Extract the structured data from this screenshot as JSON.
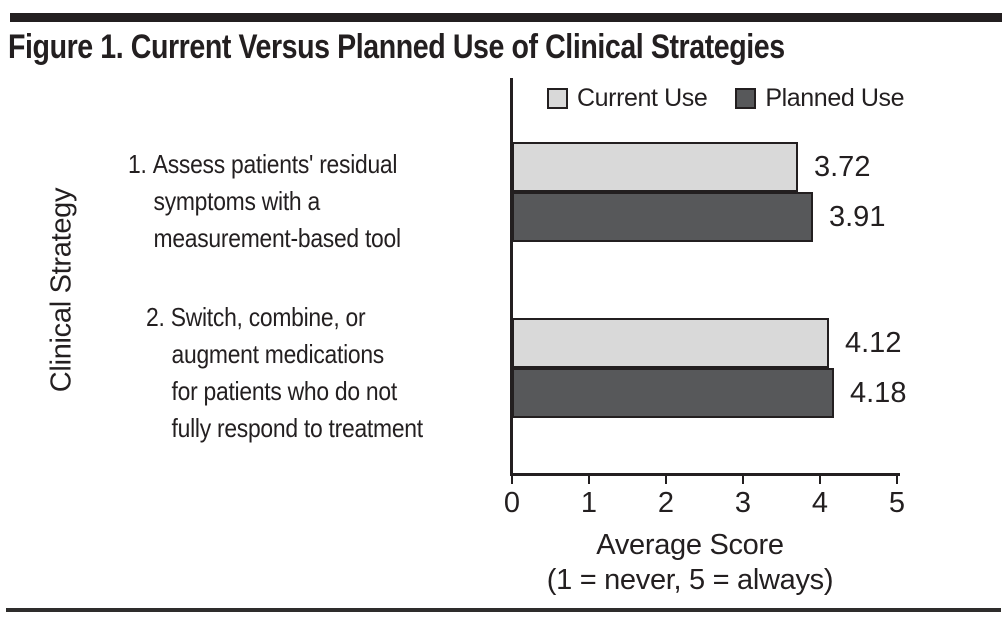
{
  "title": "Figure 1. Current Versus Planned Use of Clinical Strategies",
  "colors": {
    "ink": "#231f20",
    "current_fill": "#d9d9d9",
    "planned_fill": "#57585a",
    "background": "#ffffff"
  },
  "legend": [
    {
      "label": "Current Use",
      "swatch_color": "#d9d9d9"
    },
    {
      "label": "Planned Use",
      "swatch_color": "#57585a"
    }
  ],
  "chart_data": {
    "type": "bar",
    "orientation": "horizontal",
    "title": "Figure 1. Current Versus Planned Use of Clinical Strategies",
    "categories": [
      {
        "number": "1.",
        "lines": [
          "Assess patients' residual",
          "symptoms with a",
          "measurement-based tool"
        ]
      },
      {
        "number": "2.",
        "lines": [
          "Switch, combine, or",
          "augment medications",
          "for patients who do not",
          "fully respond to treatment"
        ]
      }
    ],
    "series": [
      {
        "name": "Current Use",
        "color": "#d9d9d9",
        "values": [
          3.72,
          4.12
        ]
      },
      {
        "name": "Planned Use",
        "color": "#57585a",
        "values": [
          3.91,
          4.18
        ]
      }
    ],
    "xlabel": "Average Score",
    "xlabel_sub": "(1 = never, 5 = always)",
    "ylabel": "Clinical Strategy",
    "xlim": [
      0,
      5
    ],
    "xticks": [
      "0",
      "1",
      "2",
      "3",
      "4",
      "5"
    ],
    "value_labels": true,
    "legend_position": "top",
    "grid": false
  }
}
